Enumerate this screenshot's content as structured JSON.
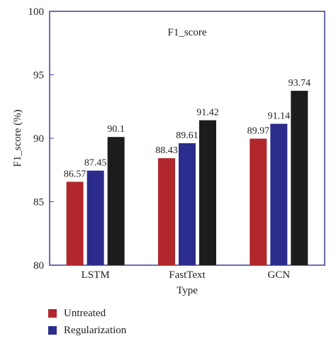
{
  "chart_data": {
    "type": "bar",
    "title": "F1_score",
    "xlabel": "Type",
    "ylabel": "F1_score (%)",
    "ylim": [
      80,
      100
    ],
    "yticks": [
      80,
      85,
      90,
      95,
      100
    ],
    "grid": false,
    "legend_position": "bottom-left, outside",
    "categories": [
      "LSTM",
      "FastText",
      "GCN"
    ],
    "series": [
      {
        "name": "Untreated",
        "color": "#b1272b",
        "values": [
          86.57,
          88.43,
          89.97
        ],
        "labels": [
          "86.57",
          "88.43",
          "89.97"
        ]
      },
      {
        "name": "Regularization",
        "color": "#2c2c8c",
        "values": [
          87.45,
          89.61,
          91.14
        ],
        "labels": [
          "87.45",
          "89.61",
          "91.14"
        ]
      },
      {
        "values": [
          90.1,
          91.42,
          93.74
        ],
        "color": "#1c1c1c",
        "labels": [
          "90.1",
          "91.42",
          "93.74"
        ]
      }
    ]
  }
}
